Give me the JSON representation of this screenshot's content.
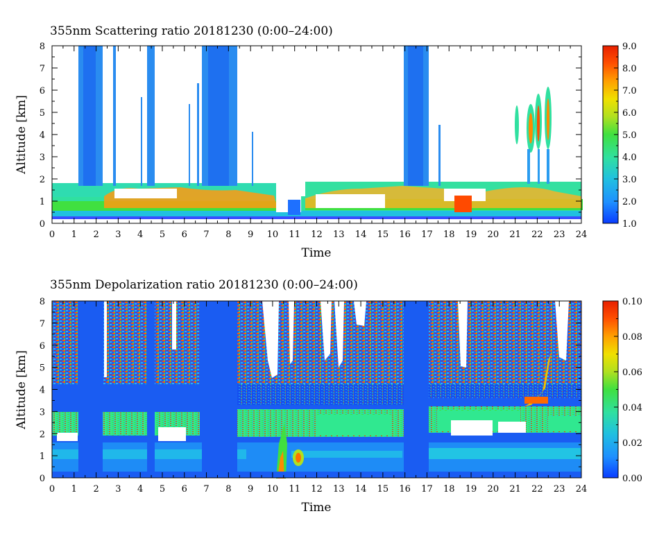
{
  "chart_data": [
    {
      "type": "heatmap",
      "title": "355nm Scattering ratio  20181230 (0:00–24:00)",
      "xlabel": "Time",
      "ylabel": "Altitude [km]",
      "x_ticks": [
        "0",
        "1",
        "2",
        "3",
        "4",
        "5",
        "6",
        "7",
        "8",
        "9",
        "10",
        "11",
        "12",
        "13",
        "14",
        "15",
        "16",
        "17",
        "18",
        "19",
        "20",
        "21",
        "22",
        "23",
        "24"
      ],
      "y_ticks": [
        "0",
        "1",
        "2",
        "3",
        "4",
        "5",
        "6",
        "7",
        "8"
      ],
      "xlim": [
        0,
        24
      ],
      "ylim": [
        0,
        8
      ],
      "colorbar": {
        "min": 1.0,
        "max": 9.0,
        "tick_labels": [
          "1.0",
          "2.0",
          "3.0",
          "4.0",
          "5.0",
          "6.0",
          "7.0",
          "8.0",
          "9.0"
        ],
        "colormap": [
          "#0a3cff",
          "#1e90ff",
          "#20c0e0",
          "#30e0a0",
          "#40e040",
          "#b0e020",
          "#f0e000",
          "#ffa000",
          "#ff5000",
          "#e82000"
        ]
      },
      "features": {
        "boundary_layer_top_km": 1.7,
        "columns_to_8km_hours": [
          [
            1.2,
            2.3
          ],
          [
            2.85,
            2.95
          ],
          [
            4.3,
            4.6
          ],
          [
            6.8,
            8.4
          ],
          [
            16.0,
            17.0
          ]
        ],
        "thin_columns_hours": [
          4.1,
          6.3,
          6.6,
          9.0,
          17.6
        ],
        "cloud_gap_hours": [
          10.2,
          11.3
        ],
        "cirrus_patches_hours": [
          21.0,
          22.6
        ]
      }
    },
    {
      "type": "heatmap",
      "title": "355nm Depolarization ratio  20181230 (0:00–24:00)",
      "xlabel": "Time",
      "ylabel": "Altitude [km]",
      "x_ticks": [
        "0",
        "1",
        "2",
        "3",
        "4",
        "5",
        "6",
        "7",
        "8",
        "9",
        "10",
        "11",
        "12",
        "13",
        "14",
        "15",
        "16",
        "17",
        "18",
        "19",
        "20",
        "21",
        "22",
        "23",
        "24"
      ],
      "y_ticks": [
        "0",
        "1",
        "2",
        "3",
        "4",
        "5",
        "6",
        "7",
        "8"
      ],
      "xlim": [
        0,
        24
      ],
      "ylim": [
        0,
        8
      ],
      "colorbar": {
        "min": 0.0,
        "max": 0.1,
        "tick_labels": [
          "0.00",
          "0.02",
          "0.04",
          "0.06",
          "0.08",
          "0.10"
        ],
        "colormap": [
          "#0a3cff",
          "#1e90ff",
          "#20c0e0",
          "#30e0a0",
          "#40e040",
          "#b0e020",
          "#f0e000",
          "#ffa000",
          "#ff5000",
          "#e82000"
        ]
      },
      "features": {
        "low_layer_km": [
          0.3,
          1.7
        ],
        "aerosol_layer_km": [
          1.8,
          3.3
        ],
        "noisy_upper_region_km": [
          3.5,
          8.0
        ],
        "low_depol_columns_hours": [
          [
            1.2,
            2.3
          ],
          [
            2.85,
            2.95
          ],
          [
            4.3,
            4.6
          ],
          [
            6.8,
            8.4
          ],
          [
            16.0,
            17.0
          ]
        ]
      }
    }
  ]
}
